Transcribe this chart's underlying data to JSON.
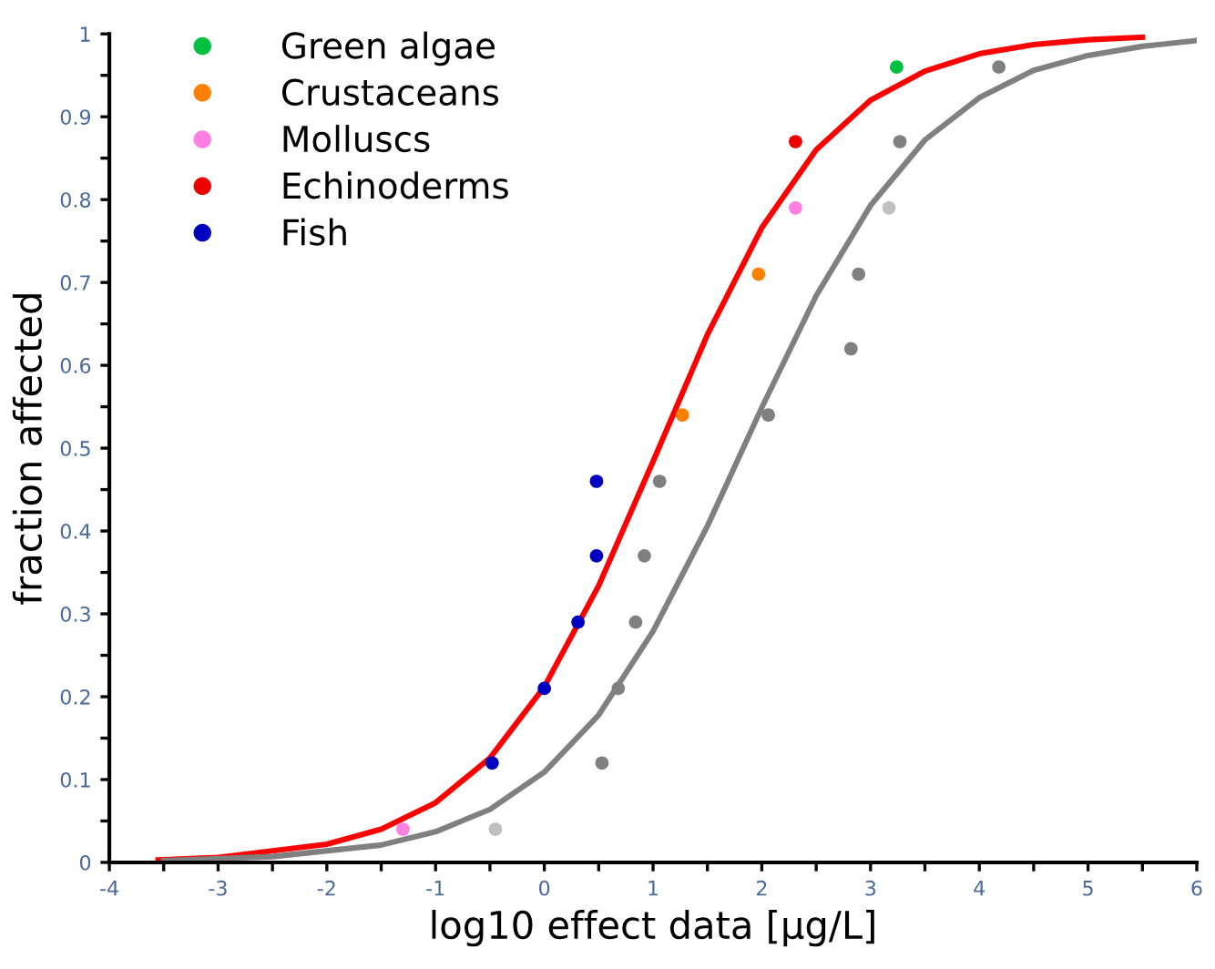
{
  "chart_data": {
    "type": "scatter",
    "xlabel": "log10 effect data [μg/L]",
    "ylabel": "fraction affected",
    "xlim": [
      -4,
      6
    ],
    "ylim": [
      0,
      1
    ],
    "xticks": [
      -4,
      {
        "value": -3.5,
        "label": null
      },
      -3,
      {
        "value": -2.5,
        "label": null
      },
      -2,
      {
        "value": -1.5,
        "label": null
      },
      -1,
      {
        "value": -0.5,
        "label": null
      },
      0,
      {
        "value": 0.5,
        "label": null
      },
      1,
      {
        "value": 1.5,
        "label": null
      },
      2,
      {
        "value": 2.5,
        "label": null
      },
      3,
      {
        "value": 3.5,
        "label": null
      },
      4,
      {
        "value": 4.5,
        "label": null
      },
      5,
      {
        "value": 5.5,
        "label": null
      },
      6
    ],
    "yticks": [
      0,
      {
        "value": 0.05,
        "label": null
      },
      0.1,
      {
        "value": 0.15,
        "label": null
      },
      0.2,
      {
        "value": 0.25,
        "label": null
      },
      0.3,
      {
        "value": 0.35,
        "label": null
      },
      0.4,
      {
        "value": 0.45,
        "label": null
      },
      0.5,
      {
        "value": 0.55,
        "label": null
      },
      0.6,
      {
        "value": 0.65,
        "label": null
      },
      0.7,
      {
        "value": 0.75,
        "label": null
      },
      0.8,
      {
        "value": 0.85,
        "label": null
      },
      0.9,
      {
        "value": 0.95,
        "label": null
      },
      1
    ],
    "grid": false,
    "legend": "top left",
    "marker": "circle",
    "series": [
      {
        "type": "line",
        "marker": "none",
        "color": "#ff0000",
        "x": [
          -3.55,
          -3,
          -2,
          -1.5,
          -1,
          -0.5,
          0,
          0.5,
          1,
          1.5,
          2,
          2.5,
          3,
          3.5,
          4,
          4.5,
          5,
          5.5
        ],
        "values": [
          0.003,
          0.006,
          0.022,
          0.04,
          0.072,
          0.126,
          0.212,
          0.334,
          0.484,
          0.637,
          0.766,
          0.86,
          0.92,
          0.955,
          0.976,
          0.987,
          0.993,
          0.996
        ]
      },
      {
        "type": "line",
        "marker": "none",
        "color": "#808080",
        "x": [
          -3.5,
          -2.5,
          -1.5,
          -1,
          -0.5,
          0,
          0.5,
          1,
          1.5,
          2,
          2.5,
          3,
          3.5,
          4,
          4.5,
          5,
          5.5,
          6
        ],
        "values": [
          0.002,
          0.007,
          0.021,
          0.037,
          0.064,
          0.109,
          0.178,
          0.279,
          0.406,
          0.549,
          0.684,
          0.793,
          0.872,
          0.923,
          0.956,
          0.974,
          0.985,
          0.992
        ]
      },
      {
        "x": [
          -0.45,
          0.53,
          0.68,
          0.84,
          0.92,
          1.06,
          2.06,
          2.82,
          2.89,
          3.17,
          3.27,
          4.18
        ],
        "values": [
          0.04,
          0.12,
          0.21,
          0.29,
          0.37,
          0.46,
          0.54,
          0.62,
          0.71,
          0.79,
          0.87,
          0.96
        ],
        "colors": [
          "#c0c0c0",
          "#808080",
          "#808080",
          "#808080",
          "#808080",
          "#808080",
          "#808080",
          "#808080",
          "#808080",
          "#c0c0c0",
          "#808080",
          "#808080"
        ]
      },
      {
        "name": "Green algae",
        "color": "#00c040",
        "x": [
          3.24
        ],
        "values": [
          0.96
        ]
      },
      {
        "name": "Crustaceans",
        "color": "#ff8000",
        "x": [
          1.27,
          1.97
        ],
        "values": [
          0.54,
          0.71
        ]
      },
      {
        "name": "Molluscs",
        "color": "#ff80e0",
        "x": [
          -1.3,
          2.31
        ],
        "values": [
          0.04,
          0.79
        ]
      },
      {
        "name": "Echinoderms",
        "color": "#ee0000",
        "x": [
          2.31
        ],
        "values": [
          0.87
        ]
      },
      {
        "name": "Fish",
        "color": "#0000c0",
        "x": [
          -0.48,
          0,
          0.31,
          0.48,
          0.48
        ],
        "values": [
          0.12,
          0.21,
          0.29,
          0.37,
          0.46
        ]
      }
    ]
  }
}
